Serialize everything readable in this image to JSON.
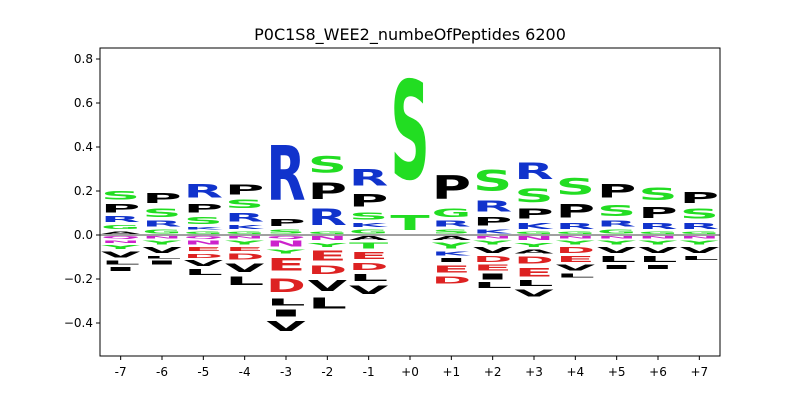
{
  "chart_data": {
    "type": "sequence-logo",
    "title": "P0C1S8_WEE2_numbeOfPeptides 6200",
    "xlabel": "",
    "ylabel": "",
    "ylim": [
      -0.55,
      0.85
    ],
    "y_ticks": [
      -0.4,
      -0.2,
      0.0,
      0.2,
      0.4,
      0.6,
      0.8
    ],
    "y_tick_labels": [
      "−0.4",
      "−0.2",
      "0.0",
      "0.2",
      "0.4",
      "0.6",
      "0.8"
    ],
    "grid": false,
    "legend": "none",
    "baseline": 0.0,
    "colors": {
      "S": "#22dd22",
      "T": "#22dd22",
      "G": "#22dd22",
      "Y": "#22dd22",
      "C": "#22dd22",
      "N": "#cc22cc",
      "Q": "#cc22cc",
      "R": "#1133cc",
      "K": "#1133cc",
      "H": "#1133cc",
      "D": "#dd2222",
      "E": "#dd2222",
      "P": "#000000",
      "A": "#000000",
      "V": "#000000",
      "L": "#000000",
      "I": "#000000",
      "M": "#000000",
      "F": "#000000",
      "W": "#000000"
    },
    "positions": [
      {
        "label": "-7",
        "above": [
          {
            "letter": "P",
            "height": 0.06
          },
          {
            "letter": "S",
            "height": 0.06
          },
          {
            "letter": "R",
            "height": 0.04
          },
          {
            "letter": "G",
            "height": 0.03
          },
          {
            "letter": "A",
            "height": 0.02
          }
        ],
        "below": [
          {
            "letter": "Q",
            "height": 0.02
          },
          {
            "letter": "N",
            "height": 0.02
          },
          {
            "letter": "Y",
            "height": 0.03
          },
          {
            "letter": "V",
            "height": 0.04
          },
          {
            "letter": "L",
            "height": 0.03
          },
          {
            "letter": "I",
            "height": 0.03
          }
        ]
      },
      {
        "label": "-6",
        "above": [
          {
            "letter": "P",
            "height": 0.07
          },
          {
            "letter": "S",
            "height": 0.06
          },
          {
            "letter": "R",
            "height": 0.04
          },
          {
            "letter": "G",
            "height": 0.03
          }
        ],
        "below": [
          {
            "letter": "N",
            "height": 0.02
          },
          {
            "letter": "Y",
            "height": 0.03
          },
          {
            "letter": "V",
            "height": 0.04
          },
          {
            "letter": "L",
            "height": 0.02
          },
          {
            "letter": "I",
            "height": 0.03
          }
        ]
      },
      {
        "label": "-5",
        "above": [
          {
            "letter": "R",
            "height": 0.1
          },
          {
            "letter": "S",
            "height": 0.05
          },
          {
            "letter": "P",
            "height": 0.06
          },
          {
            "letter": "G",
            "height": 0.02
          },
          {
            "letter": "K",
            "height": 0.02
          }
        ],
        "below": [
          {
            "letter": "Q",
            "height": 0.02
          },
          {
            "letter": "N",
            "height": 0.03
          },
          {
            "letter": "E",
            "height": 0.03
          },
          {
            "letter": "D",
            "height": 0.03
          },
          {
            "letter": "V",
            "height": 0.04
          },
          {
            "letter": "L",
            "height": 0.04
          }
        ]
      },
      {
        "label": "-4",
        "above": [
          {
            "letter": "P",
            "height": 0.07
          },
          {
            "letter": "R",
            "height": 0.06
          },
          {
            "letter": "S",
            "height": 0.06
          },
          {
            "letter": "K",
            "height": 0.03
          },
          {
            "letter": "G",
            "height": 0.02
          }
        ],
        "below": [
          {
            "letter": "N",
            "height": 0.02
          },
          {
            "letter": "Y",
            "height": 0.03
          },
          {
            "letter": "E",
            "height": 0.03
          },
          {
            "letter": "D",
            "height": 0.04
          },
          {
            "letter": "V",
            "height": 0.06
          },
          {
            "letter": "L",
            "height": 0.06
          }
        ]
      },
      {
        "label": "-3",
        "above": [
          {
            "letter": "R",
            "height": 0.4
          },
          {
            "letter": "P",
            "height": 0.05
          },
          {
            "letter": "S",
            "height": 0.03
          }
        ],
        "below": [
          {
            "letter": "Q",
            "height": 0.02
          },
          {
            "letter": "N",
            "height": 0.04
          },
          {
            "letter": "Y",
            "height": 0.03
          },
          {
            "letter": "E",
            "height": 0.09
          },
          {
            "letter": "D",
            "height": 0.1
          },
          {
            "letter": "L",
            "height": 0.05
          },
          {
            "letter": "I",
            "height": 0.05
          },
          {
            "letter": "V",
            "height": 0.07
          }
        ]
      },
      {
        "label": "-2",
        "above": [
          {
            "letter": "R",
            "height": 0.12
          },
          {
            "letter": "P",
            "height": 0.12
          },
          {
            "letter": "S",
            "height": 0.12
          },
          {
            "letter": "G",
            "height": 0.02
          }
        ],
        "below": [
          {
            "letter": "N",
            "height": 0.03
          },
          {
            "letter": "Y",
            "height": 0.03
          },
          {
            "letter": "E",
            "height": 0.07
          },
          {
            "letter": "D",
            "height": 0.06
          },
          {
            "letter": "V",
            "height": 0.08
          },
          {
            "letter": "L",
            "height": 0.08
          }
        ]
      },
      {
        "label": "-1",
        "above": [
          {
            "letter": "R",
            "height": 0.12
          },
          {
            "letter": "P",
            "height": 0.09
          },
          {
            "letter": "S",
            "height": 0.05
          },
          {
            "letter": "G",
            "height": 0.03
          },
          {
            "letter": "K",
            "height": 0.03
          }
        ],
        "below": [
          {
            "letter": "A",
            "height": 0.03
          },
          {
            "letter": "T",
            "height": 0.04
          },
          {
            "letter": "E",
            "height": 0.05
          },
          {
            "letter": "D",
            "height": 0.05
          },
          {
            "letter": "L",
            "height": 0.05
          },
          {
            "letter": "V",
            "height": 0.06
          }
        ]
      },
      {
        "label": "+0",
        "above": [
          {
            "letter": "S",
            "height": 0.72
          },
          {
            "letter": "T",
            "height": 0.11
          }
        ],
        "below": []
      },
      {
        "label": "+1",
        "above": [
          {
            "letter": "P",
            "height": 0.17
          },
          {
            "letter": "G",
            "height": 0.06
          },
          {
            "letter": "R",
            "height": 0.04
          },
          {
            "letter": "S",
            "height": 0.03
          }
        ],
        "below": [
          {
            "letter": "A",
            "height": 0.03
          },
          {
            "letter": "Y",
            "height": 0.04
          },
          {
            "letter": "K",
            "height": 0.03
          },
          {
            "letter": "I",
            "height": 0.03
          },
          {
            "letter": "E",
            "height": 0.05
          },
          {
            "letter": "D",
            "height": 0.05
          }
        ]
      },
      {
        "label": "+2",
        "above": [
          {
            "letter": "S",
            "height": 0.15
          },
          {
            "letter": "R",
            "height": 0.08
          },
          {
            "letter": "P",
            "height": 0.06
          },
          {
            "letter": "K",
            "height": 0.03
          }
        ],
        "below": [
          {
            "letter": "N",
            "height": 0.02
          },
          {
            "letter": "Y",
            "height": 0.03
          },
          {
            "letter": "V",
            "height": 0.04
          },
          {
            "letter": "D",
            "height": 0.04
          },
          {
            "letter": "E",
            "height": 0.04
          },
          {
            "letter": "I",
            "height": 0.04
          },
          {
            "letter": "L",
            "height": 0.04
          }
        ]
      },
      {
        "label": "+3",
        "above": [
          {
            "letter": "R",
            "height": 0.12
          },
          {
            "letter": "S",
            "height": 0.1
          },
          {
            "letter": "P",
            "height": 0.07
          },
          {
            "letter": "K",
            "height": 0.04
          },
          {
            "letter": "G",
            "height": 0.02
          }
        ],
        "below": [
          {
            "letter": "N",
            "height": 0.03
          },
          {
            "letter": "Y",
            "height": 0.03
          },
          {
            "letter": "A",
            "height": 0.03
          },
          {
            "letter": "D",
            "height": 0.05
          },
          {
            "letter": "E",
            "height": 0.06
          },
          {
            "letter": "L",
            "height": 0.04
          },
          {
            "letter": "V",
            "height": 0.05
          }
        ]
      },
      {
        "label": "+4",
        "above": [
          {
            "letter": "S",
            "height": 0.12
          },
          {
            "letter": "P",
            "height": 0.1
          },
          {
            "letter": "R",
            "height": 0.04
          },
          {
            "letter": "G",
            "height": 0.02
          }
        ],
        "below": [
          {
            "letter": "N",
            "height": 0.02
          },
          {
            "letter": "Y",
            "height": 0.03
          },
          {
            "letter": "D",
            "height": 0.04
          },
          {
            "letter": "E",
            "height": 0.04
          },
          {
            "letter": "V",
            "height": 0.04
          },
          {
            "letter": "L",
            "height": 0.03
          }
        ]
      },
      {
        "label": "+5",
        "above": [
          {
            "letter": "P",
            "height": 0.1
          },
          {
            "letter": "S",
            "height": 0.08
          },
          {
            "letter": "R",
            "height": 0.04
          },
          {
            "letter": "G",
            "height": 0.03
          }
        ],
        "below": [
          {
            "letter": "N",
            "height": 0.02
          },
          {
            "letter": "Y",
            "height": 0.03
          },
          {
            "letter": "V",
            "height": 0.04
          },
          {
            "letter": "L",
            "height": 0.04
          },
          {
            "letter": "I",
            "height": 0.03
          }
        ]
      },
      {
        "label": "+6",
        "above": [
          {
            "letter": "S",
            "height": 0.09
          },
          {
            "letter": "P",
            "height": 0.08
          },
          {
            "letter": "R",
            "height": 0.04
          },
          {
            "letter": "G",
            "height": 0.02
          }
        ],
        "below": [
          {
            "letter": "N",
            "height": 0.02
          },
          {
            "letter": "Y",
            "height": 0.03
          },
          {
            "letter": "V",
            "height": 0.04
          },
          {
            "letter": "L",
            "height": 0.04
          },
          {
            "letter": "I",
            "height": 0.03
          }
        ]
      },
      {
        "label": "+7",
        "above": [
          {
            "letter": "P",
            "height": 0.08
          },
          {
            "letter": "S",
            "height": 0.07
          },
          {
            "letter": "R",
            "height": 0.04
          },
          {
            "letter": "G",
            "height": 0.02
          }
        ],
        "below": [
          {
            "letter": "N",
            "height": 0.02
          },
          {
            "letter": "Y",
            "height": 0.03
          },
          {
            "letter": "V",
            "height": 0.04
          },
          {
            "letter": "L",
            "height": 0.03
          }
        ]
      }
    ]
  }
}
